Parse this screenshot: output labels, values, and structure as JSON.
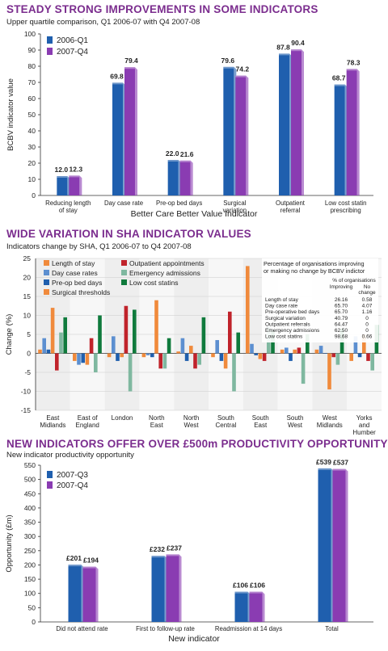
{
  "colors": {
    "title": "#7b2d8e",
    "blue": "#1f5fae",
    "purple": "#8a3cb2",
    "orange": "#f08a3c",
    "red": "#c0232b",
    "green": "#0f7a3c",
    "lightblue": "#5c8fd0",
    "sage": "#7fb8a0"
  },
  "panels": {
    "p1": {
      "title": "STEADY STRONG IMPROVEMENTS IN SOME INDICATORS",
      "subtitle": "Upper quartile comparison, Q1 2006-07 with Q4 2007-08"
    },
    "p2": {
      "title": "WIDE VARIATION IN SHA INDICATOR VALUES",
      "subtitle": "Indicators change by SHA, Q1 2006-07 to Q4 2007-08"
    },
    "p3": {
      "title": "NEW INDICATORS OFFER OVER £500m PRODUCTIVITY OPPORTUNITY",
      "subtitle": "New indicator productivity opportunity"
    }
  },
  "chart_data": [
    {
      "type": "bar",
      "title": "STEADY STRONG IMPROVEMENTS IN SOME INDICATORS",
      "subtitle": "Upper quartile comparison, Q1 2006-07 with Q4 2007-08",
      "xlabel": "Better Care Better Value Indicator",
      "ylabel": "BCBV indicator value",
      "ylim": [
        0,
        100
      ],
      "yticks": [
        0,
        10,
        20,
        30,
        40,
        50,
        60,
        70,
        80,
        90,
        100
      ],
      "categories": [
        "Reducing length of stay",
        "Day case rate",
        "Pre-op bed days",
        "Surgical variation",
        "Outpatient referral",
        "Low cost statin prescribing"
      ],
      "series": [
        {
          "name": "2006-Q1",
          "values": [
            12.0,
            69.8,
            22.0,
            79.6,
            87.8,
            68.7
          ],
          "labels": [
            "12.0",
            "69.8",
            "22.0",
            "79.6",
            "87.8",
            "68.7"
          ]
        },
        {
          "name": "2007-Q4",
          "values": [
            12.3,
            79.4,
            21.6,
            74.2,
            90.4,
            78.3
          ],
          "labels": [
            "12.3",
            "79.4",
            "21.6",
            "74.2",
            "90.4",
            "78.3"
          ]
        }
      ],
      "legend": "top-left",
      "grid": false
    },
    {
      "type": "bar",
      "title": "WIDE VARIATION IN SHA INDICATOR VALUES",
      "subtitle": "Indicators change by SHA, Q1 2006-07 to Q4 2007-08",
      "ylabel": "Change (%)",
      "ylim": [
        -15,
        25
      ],
      "yticks": [
        -15,
        -10,
        -5,
        0,
        5,
        10,
        15,
        20,
        25
      ],
      "categories": [
        "East Midlands",
        "East of England",
        "London",
        "North East",
        "North West",
        "South Central",
        "South East",
        "South West",
        "West Midlands",
        "Yorks and Humber"
      ],
      "series": [
        {
          "name": "Length of stay",
          "values": [
            1,
            -2,
            -1,
            -1,
            0.5,
            -1,
            23,
            1,
            1,
            -2
          ]
        },
        {
          "name": "Day case rates",
          "values": [
            4,
            -3,
            4.5,
            -0.5,
            4,
            3.5,
            2.5,
            1.5,
            2,
            4.5
          ]
        },
        {
          "name": "Pre-op bed days",
          "values": [
            1,
            -2.5,
            -2,
            -1,
            -2,
            -2,
            -0.5,
            -2,
            0,
            -1
          ]
        },
        {
          "name": "Surgical thresholds",
          "values": [
            12,
            -3,
            -1,
            14,
            2,
            -4,
            -1.5,
            1,
            -9.5,
            5
          ]
        },
        {
          "name": "Outpatient appointments",
          "values": [
            -4.5,
            4,
            12.5,
            -4,
            -4,
            11,
            -2,
            1.5,
            -1,
            -2
          ]
        },
        {
          "name": "Emergency admissions",
          "values": [
            5.5,
            -5,
            -10,
            -4,
            -3,
            -10,
            7,
            -8,
            -3,
            -4.5
          ]
        },
        {
          "name": "Low cost statins",
          "values": [
            9.5,
            10,
            11.5,
            4,
            9.5,
            5.5,
            6,
            5,
            6.5,
            7.5
          ]
        }
      ],
      "legend": "top-left",
      "grid": true,
      "inset_table": {
        "caption": "Percentage of organisations improving or making no change by BCBV indictor",
        "group_header": "% of organisations",
        "columns": [
          "Improving",
          "No change"
        ],
        "rows": [
          {
            "label": "Length of stay",
            "improving": "26.16",
            "no_change": "0.58"
          },
          {
            "label": "Day case rate",
            "improving": "65.70",
            "no_change": "4.07"
          },
          {
            "label": "Pre-operative bed days",
            "improving": "65.70",
            "no_change": "1.16"
          },
          {
            "label": "Surgical variation",
            "improving": "40.79",
            "no_change": "0"
          },
          {
            "label": "Outpatient referrals",
            "improving": "64.47",
            "no_change": "0"
          },
          {
            "label": "Emergency admissions",
            "improving": "62.50",
            "no_change": "0"
          },
          {
            "label": "Low cost statins",
            "improving": "98.68",
            "no_change": "0.66"
          }
        ]
      }
    },
    {
      "type": "bar",
      "title": "NEW INDICATORS OFFER OVER £500m PRODUCTIVITY OPPORTUNITY",
      "subtitle": "New indicator productivity opportunity",
      "xlabel": "New indicator",
      "ylabel": "Opportunity (£m)",
      "ylim": [
        0,
        550
      ],
      "yticks": [
        0,
        50,
        100,
        150,
        200,
        250,
        300,
        350,
        400,
        450,
        500,
        550
      ],
      "categories": [
        "Did not attend rate",
        "First to follow-up rate",
        "Readmission at 14 days",
        "Total"
      ],
      "series": [
        {
          "name": "2007-Q3",
          "values": [
            201,
            232,
            106,
            539
          ],
          "labels": [
            "£201",
            "£232",
            "£106",
            "£539"
          ]
        },
        {
          "name": "2007-Q4",
          "values": [
            194,
            237,
            106,
            537
          ],
          "labels": [
            "£194",
            "£237",
            "£106",
            "£537"
          ]
        }
      ],
      "legend": "top-left",
      "grid": false
    }
  ]
}
